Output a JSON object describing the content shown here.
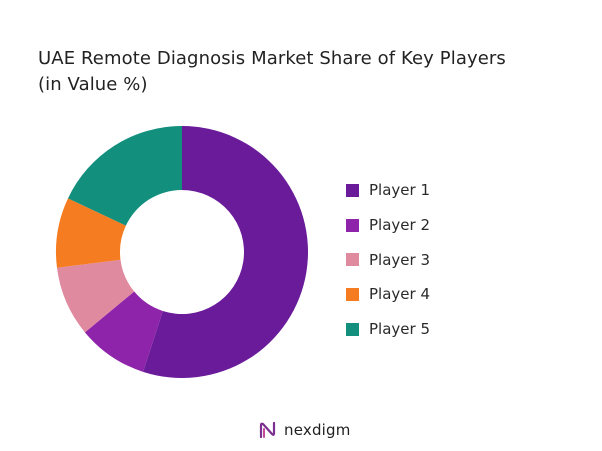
{
  "chart_data": {
    "type": "pie",
    "title": "UAE Remote Diagnosis Market Share of Key Players",
    "subtitle": "(in Value %)",
    "donut": true,
    "legend_position": "right",
    "categories": [
      "Player 1",
      "Player 2",
      "Player 3",
      "Player 4",
      "Player 5"
    ],
    "values": [
      55,
      9,
      9,
      9,
      18
    ],
    "colors": [
      "#6a1b9a",
      "#8e24aa",
      "#e08aa0",
      "#f57c20",
      "#138f7e"
    ]
  },
  "brand": {
    "name": "nexdigm",
    "color": "#7b2f8e"
  }
}
